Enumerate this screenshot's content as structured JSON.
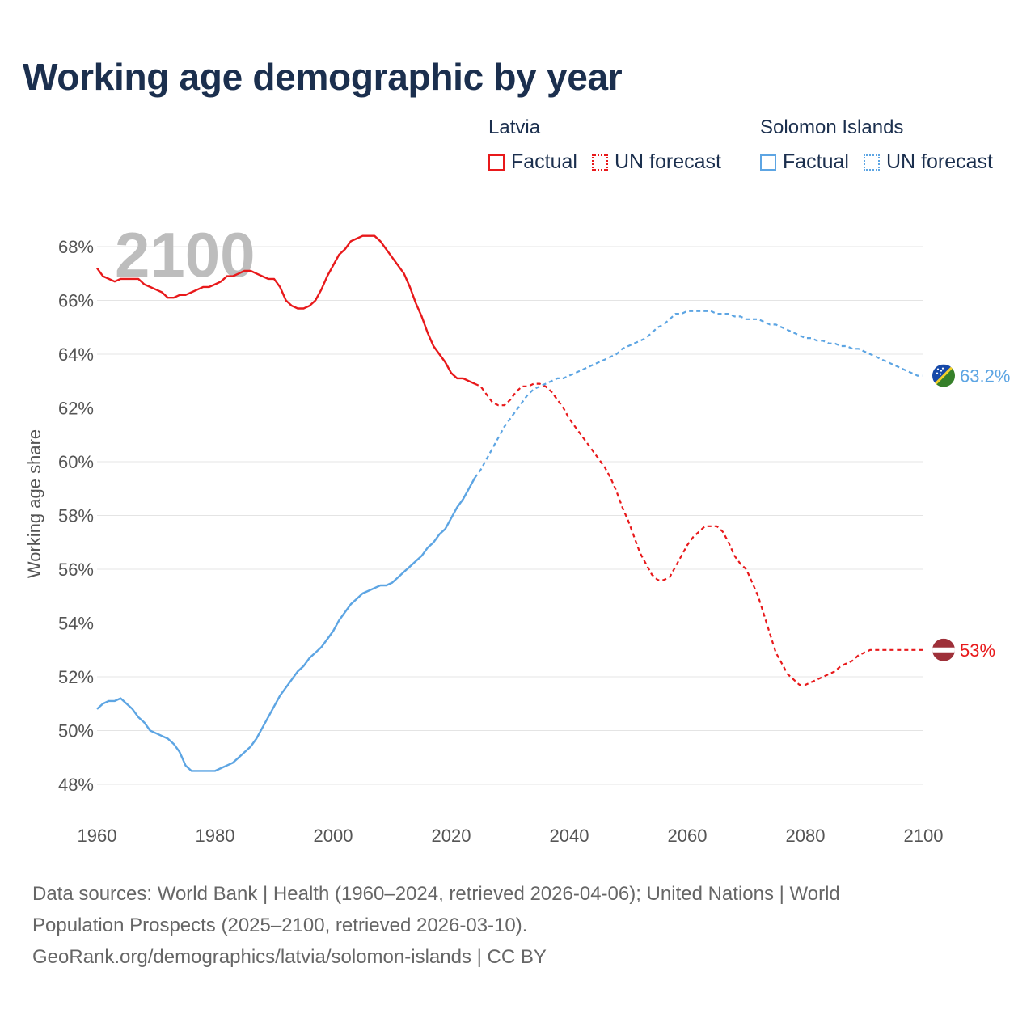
{
  "title": "Working age demographic by year",
  "legend": {
    "groups": [
      {
        "name": "Latvia",
        "color": "#e8191b",
        "factual_label": "Factual",
        "forecast_label": "UN forecast"
      },
      {
        "name": "Solomon Islands",
        "color": "#5da5e3",
        "factual_label": "Factual",
        "forecast_label": "UN forecast"
      }
    ]
  },
  "year_display": "2100",
  "sources": {
    "line1": "Data sources: World Bank | Health (1960–2024, retrieved 2026-04-06); United Nations | World",
    "line2": "Population Prospects (2025–2100, retrieved 2026-03-10).",
    "line3": "GeoRank.org/demographics/latvia/solomon-islands | CC BY"
  },
  "chart_data": {
    "type": "line",
    "ylabel": "Working age share",
    "xlabel": "",
    "xlim": [
      1960,
      2100
    ],
    "ylim": [
      47,
      69
    ],
    "x_ticks": [
      1960,
      1980,
      2000,
      2020,
      2040,
      2060,
      2080,
      2100
    ],
    "y_ticks": [
      48,
      50,
      52,
      54,
      56,
      58,
      60,
      62,
      64,
      66,
      68
    ],
    "y_tick_suffix": "%",
    "factual_end_year": 2024,
    "series": [
      {
        "name": "Latvia",
        "color": "#e8191b",
        "end_label": "53%",
        "flag_colors": [
          "#9e3039",
          "#ffffff",
          "#9e3039"
        ],
        "points": [
          [
            1960,
            67.2
          ],
          [
            1961,
            66.9
          ],
          [
            1962,
            66.8
          ],
          [
            1963,
            66.7
          ],
          [
            1964,
            66.8
          ],
          [
            1965,
            66.8
          ],
          [
            1966,
            66.8
          ],
          [
            1967,
            66.8
          ],
          [
            1968,
            66.6
          ],
          [
            1969,
            66.5
          ],
          [
            1970,
            66.4
          ],
          [
            1971,
            66.3
          ],
          [
            1972,
            66.1
          ],
          [
            1973,
            66.1
          ],
          [
            1974,
            66.2
          ],
          [
            1975,
            66.2
          ],
          [
            1976,
            66.3
          ],
          [
            1977,
            66.4
          ],
          [
            1978,
            66.5
          ],
          [
            1979,
            66.5
          ],
          [
            1980,
            66.6
          ],
          [
            1981,
            66.7
          ],
          [
            1982,
            66.9
          ],
          [
            1983,
            66.9
          ],
          [
            1984,
            67.0
          ],
          [
            1985,
            67.1
          ],
          [
            1986,
            67.1
          ],
          [
            1987,
            67.0
          ],
          [
            1988,
            66.9
          ],
          [
            1989,
            66.8
          ],
          [
            1990,
            66.8
          ],
          [
            1991,
            66.5
          ],
          [
            1992,
            66.0
          ],
          [
            1993,
            65.8
          ],
          [
            1994,
            65.7
          ],
          [
            1995,
            65.7
          ],
          [
            1996,
            65.8
          ],
          [
            1997,
            66.0
          ],
          [
            1998,
            66.4
          ],
          [
            1999,
            66.9
          ],
          [
            2000,
            67.3
          ],
          [
            2001,
            67.7
          ],
          [
            2002,
            67.9
          ],
          [
            2003,
            68.2
          ],
          [
            2004,
            68.3
          ],
          [
            2005,
            68.4
          ],
          [
            2006,
            68.4
          ],
          [
            2007,
            68.4
          ],
          [
            2008,
            68.2
          ],
          [
            2009,
            67.9
          ],
          [
            2010,
            67.6
          ],
          [
            2011,
            67.3
          ],
          [
            2012,
            67.0
          ],
          [
            2013,
            66.5
          ],
          [
            2014,
            65.9
          ],
          [
            2015,
            65.4
          ],
          [
            2016,
            64.8
          ],
          [
            2017,
            64.3
          ],
          [
            2018,
            64.0
          ],
          [
            2019,
            63.7
          ],
          [
            2020,
            63.3
          ],
          [
            2021,
            63.1
          ],
          [
            2022,
            63.1
          ],
          [
            2023,
            63.0
          ],
          [
            2024,
            62.9
          ],
          [
            2025,
            62.8
          ],
          [
            2026,
            62.5
          ],
          [
            2027,
            62.2
          ],
          [
            2028,
            62.1
          ],
          [
            2029,
            62.1
          ],
          [
            2030,
            62.3
          ],
          [
            2031,
            62.6
          ],
          [
            2032,
            62.8
          ],
          [
            2033,
            62.8
          ],
          [
            2034,
            62.9
          ],
          [
            2035,
            62.9
          ],
          [
            2036,
            62.8
          ],
          [
            2037,
            62.6
          ],
          [
            2038,
            62.3
          ],
          [
            2039,
            62.0
          ],
          [
            2040,
            61.6
          ],
          [
            2041,
            61.3
          ],
          [
            2042,
            61.0
          ],
          [
            2043,
            60.7
          ],
          [
            2044,
            60.4
          ],
          [
            2045,
            60.1
          ],
          [
            2046,
            59.8
          ],
          [
            2047,
            59.4
          ],
          [
            2048,
            58.9
          ],
          [
            2049,
            58.3
          ],
          [
            2050,
            57.8
          ],
          [
            2051,
            57.2
          ],
          [
            2052,
            56.6
          ],
          [
            2053,
            56.2
          ],
          [
            2054,
            55.8
          ],
          [
            2055,
            55.6
          ],
          [
            2056,
            55.6
          ],
          [
            2057,
            55.7
          ],
          [
            2058,
            56.1
          ],
          [
            2059,
            56.5
          ],
          [
            2060,
            56.9
          ],
          [
            2061,
            57.2
          ],
          [
            2062,
            57.4
          ],
          [
            2063,
            57.6
          ],
          [
            2064,
            57.6
          ],
          [
            2065,
            57.6
          ],
          [
            2066,
            57.4
          ],
          [
            2067,
            57.0
          ],
          [
            2068,
            56.5
          ],
          [
            2069,
            56.2
          ],
          [
            2070,
            56.0
          ],
          [
            2071,
            55.5
          ],
          [
            2072,
            55.0
          ],
          [
            2073,
            54.3
          ],
          [
            2074,
            53.6
          ],
          [
            2075,
            52.9
          ],
          [
            2076,
            52.5
          ],
          [
            2077,
            52.1
          ],
          [
            2078,
            51.9
          ],
          [
            2079,
            51.7
          ],
          [
            2080,
            51.7
          ],
          [
            2081,
            51.8
          ],
          [
            2082,
            51.9
          ],
          [
            2083,
            52.0
          ],
          [
            2084,
            52.1
          ],
          [
            2085,
            52.2
          ],
          [
            2086,
            52.4
          ],
          [
            2087,
            52.5
          ],
          [
            2088,
            52.6
          ],
          [
            2089,
            52.8
          ],
          [
            2090,
            52.9
          ],
          [
            2091,
            53.0
          ],
          [
            2092,
            53.0
          ],
          [
            2093,
            53.0
          ],
          [
            2094,
            53.0
          ],
          [
            2095,
            53.0
          ],
          [
            2096,
            53.0
          ],
          [
            2097,
            53.0
          ],
          [
            2098,
            53.0
          ],
          [
            2099,
            53.0
          ],
          [
            2100,
            53.0
          ]
        ]
      },
      {
        "name": "Solomon Islands",
        "color": "#5da5e3",
        "end_label": "63.2%",
        "flag_colors": [
          "#1749a8",
          "#f3d02b",
          "#36802a"
        ],
        "points": [
          [
            1960,
            50.8
          ],
          [
            1961,
            51.0
          ],
          [
            1962,
            51.1
          ],
          [
            1963,
            51.1
          ],
          [
            1964,
            51.2
          ],
          [
            1965,
            51.0
          ],
          [
            1966,
            50.8
          ],
          [
            1967,
            50.5
          ],
          [
            1968,
            50.3
          ],
          [
            1969,
            50.0
          ],
          [
            1970,
            49.9
          ],
          [
            1971,
            49.8
          ],
          [
            1972,
            49.7
          ],
          [
            1973,
            49.5
          ],
          [
            1974,
            49.2
          ],
          [
            1975,
            48.7
          ],
          [
            1976,
            48.5
          ],
          [
            1977,
            48.5
          ],
          [
            1978,
            48.5
          ],
          [
            1979,
            48.5
          ],
          [
            1980,
            48.5
          ],
          [
            1981,
            48.6
          ],
          [
            1982,
            48.7
          ],
          [
            1983,
            48.8
          ],
          [
            1984,
            49.0
          ],
          [
            1985,
            49.2
          ],
          [
            1986,
            49.4
          ],
          [
            1987,
            49.7
          ],
          [
            1988,
            50.1
          ],
          [
            1989,
            50.5
          ],
          [
            1990,
            50.9
          ],
          [
            1991,
            51.3
          ],
          [
            1992,
            51.6
          ],
          [
            1993,
            51.9
          ],
          [
            1994,
            52.2
          ],
          [
            1995,
            52.4
          ],
          [
            1996,
            52.7
          ],
          [
            1997,
            52.9
          ],
          [
            1998,
            53.1
          ],
          [
            1999,
            53.4
          ],
          [
            2000,
            53.7
          ],
          [
            2001,
            54.1
          ],
          [
            2002,
            54.4
          ],
          [
            2003,
            54.7
          ],
          [
            2004,
            54.9
          ],
          [
            2005,
            55.1
          ],
          [
            2006,
            55.2
          ],
          [
            2007,
            55.3
          ],
          [
            2008,
            55.4
          ],
          [
            2009,
            55.4
          ],
          [
            2010,
            55.5
          ],
          [
            2011,
            55.7
          ],
          [
            2012,
            55.9
          ],
          [
            2013,
            56.1
          ],
          [
            2014,
            56.3
          ],
          [
            2015,
            56.5
          ],
          [
            2016,
            56.8
          ],
          [
            2017,
            57.0
          ],
          [
            2018,
            57.3
          ],
          [
            2019,
            57.5
          ],
          [
            2020,
            57.9
          ],
          [
            2021,
            58.3
          ],
          [
            2022,
            58.6
          ],
          [
            2023,
            59.0
          ],
          [
            2024,
            59.4
          ],
          [
            2025,
            59.7
          ],
          [
            2026,
            60.1
          ],
          [
            2027,
            60.5
          ],
          [
            2028,
            60.9
          ],
          [
            2029,
            61.3
          ],
          [
            2030,
            61.6
          ],
          [
            2031,
            61.9
          ],
          [
            2032,
            62.2
          ],
          [
            2033,
            62.5
          ],
          [
            2034,
            62.7
          ],
          [
            2035,
            62.8
          ],
          [
            2036,
            62.9
          ],
          [
            2037,
            63.0
          ],
          [
            2038,
            63.1
          ],
          [
            2039,
            63.1
          ],
          [
            2040,
            63.2
          ],
          [
            2041,
            63.3
          ],
          [
            2042,
            63.4
          ],
          [
            2043,
            63.5
          ],
          [
            2044,
            63.6
          ],
          [
            2045,
            63.7
          ],
          [
            2046,
            63.8
          ],
          [
            2047,
            63.9
          ],
          [
            2048,
            64.0
          ],
          [
            2049,
            64.2
          ],
          [
            2050,
            64.3
          ],
          [
            2051,
            64.4
          ],
          [
            2052,
            64.5
          ],
          [
            2053,
            64.6
          ],
          [
            2054,
            64.8
          ],
          [
            2055,
            65.0
          ],
          [
            2056,
            65.1
          ],
          [
            2057,
            65.3
          ],
          [
            2058,
            65.5
          ],
          [
            2059,
            65.5
          ],
          [
            2060,
            65.6
          ],
          [
            2061,
            65.6
          ],
          [
            2062,
            65.6
          ],
          [
            2063,
            65.6
          ],
          [
            2064,
            65.6
          ],
          [
            2065,
            65.5
          ],
          [
            2066,
            65.5
          ],
          [
            2067,
            65.5
          ],
          [
            2068,
            65.4
          ],
          [
            2069,
            65.4
          ],
          [
            2070,
            65.3
          ],
          [
            2071,
            65.3
          ],
          [
            2072,
            65.3
          ],
          [
            2073,
            65.2
          ],
          [
            2074,
            65.1
          ],
          [
            2075,
            65.1
          ],
          [
            2076,
            65.0
          ],
          [
            2077,
            64.9
          ],
          [
            2078,
            64.8
          ],
          [
            2079,
            64.7
          ],
          [
            2080,
            64.6
          ],
          [
            2081,
            64.6
          ],
          [
            2082,
            64.5
          ],
          [
            2083,
            64.5
          ],
          [
            2084,
            64.4
          ],
          [
            2085,
            64.4
          ],
          [
            2086,
            64.3
          ],
          [
            2087,
            64.3
          ],
          [
            2088,
            64.2
          ],
          [
            2089,
            64.2
          ],
          [
            2090,
            64.1
          ],
          [
            2091,
            64.0
          ],
          [
            2092,
            63.9
          ],
          [
            2093,
            63.8
          ],
          [
            2094,
            63.7
          ],
          [
            2095,
            63.6
          ],
          [
            2096,
            63.5
          ],
          [
            2097,
            63.4
          ],
          [
            2098,
            63.3
          ],
          [
            2099,
            63.2
          ],
          [
            2100,
            63.2
          ]
        ]
      }
    ]
  }
}
